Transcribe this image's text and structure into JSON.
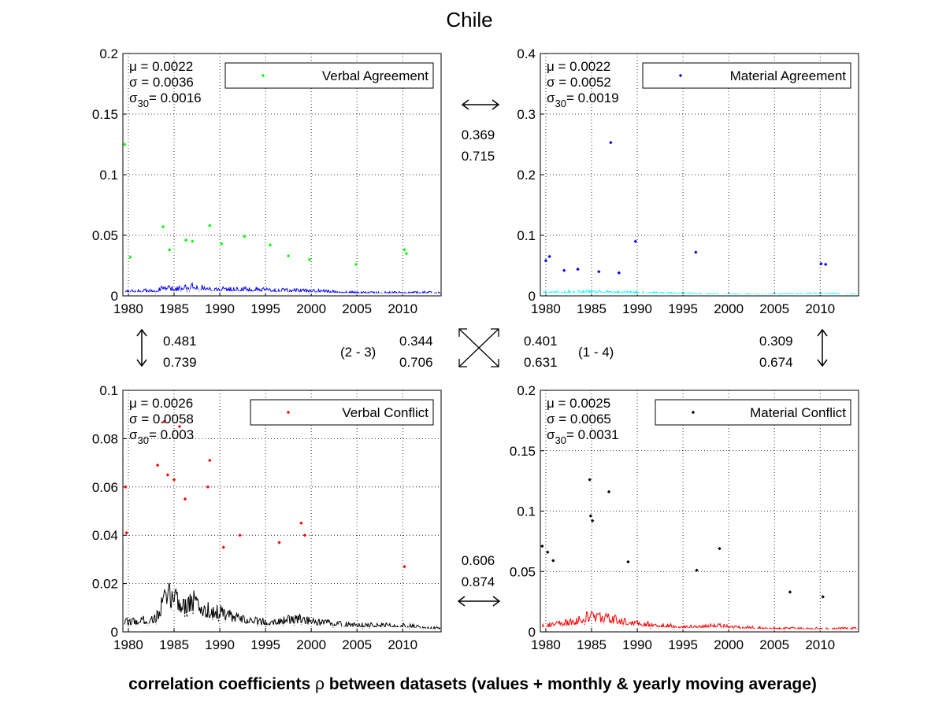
{
  "title": "Chile",
  "caption_pre": "correlation coefficients ",
  "caption_rho": "ρ",
  "caption_post": " between datasets (values + monthly & yearly moving average)",
  "chart_data": [
    {
      "id": "verbal-agreement",
      "type": "scatter",
      "legend": "Verbal Agreement",
      "color": "#00ff00",
      "mean_line_color": "#0000ff",
      "smooth_line_color": "#ffffff",
      "stats": {
        "mu": "0.0022",
        "sigma": "0.0036",
        "sigma30": "0.0016"
      },
      "ylim": [
        0,
        0.2
      ],
      "yticks": [
        "0",
        "0.05",
        "0.1",
        "0.15",
        "0.2"
      ],
      "yticks_values": [
        0,
        0.05,
        0.1,
        0.15,
        0.2
      ],
      "xlim": [
        1979.4,
        2014.2
      ],
      "xticks": [
        "1980",
        "1985",
        "1990",
        "1995",
        "2000",
        "2005",
        "2010"
      ],
      "base_level": 0.004,
      "noise_scale": 0.009,
      "outliers": [
        [
          1979.6,
          0.125
        ],
        [
          1983.8,
          0.057
        ],
        [
          1986.3,
          0.046
        ],
        [
          1987.0,
          0.045
        ],
        [
          1988.9,
          0.058
        ],
        [
          1990.2,
          0.043
        ],
        [
          1992.7,
          0.049
        ],
        [
          1995.5,
          0.042
        ],
        [
          1984.5,
          0.038
        ],
        [
          1980.2,
          0.032
        ],
        [
          2004.9,
          0.026
        ],
        [
          2010.2,
          0.038
        ],
        [
          2010.4,
          0.035
        ],
        [
          1997.5,
          0.033
        ],
        [
          1999.8,
          0.03
        ]
      ],
      "smooth": [
        [
          1980,
          0.003
        ],
        [
          1983,
          0.003
        ],
        [
          1984,
          0.005
        ],
        [
          1985,
          0.004
        ],
        [
          1987,
          0.006
        ],
        [
          1989,
          0.004
        ],
        [
          1992,
          0.004
        ],
        [
          1995,
          0.0035
        ],
        [
          2000,
          0.003
        ],
        [
          2005,
          0.002
        ],
        [
          2010,
          0.002
        ],
        [
          2014,
          0.002
        ]
      ]
    },
    {
      "id": "material-agreement",
      "type": "scatter",
      "legend": "Material Agreement",
      "color": "#0000ff",
      "mean_line_color": "#00ffff",
      "smooth_line_color": "#ffffff",
      "stats": {
        "mu": "0.0022",
        "sigma": "0.0052",
        "sigma30": "0.0019"
      },
      "ylim": [
        0,
        0.4
      ],
      "yticks": [
        "0",
        "0.1",
        "0.2",
        "0.3",
        "0.4"
      ],
      "yticks_values": [
        0,
        0.1,
        0.2,
        0.3,
        0.4
      ],
      "xlim": [
        1979.4,
        2014.2
      ],
      "xticks": [
        "1980",
        "1985",
        "1990",
        "1995",
        "2000",
        "2005",
        "2010"
      ],
      "base_level": 0.004,
      "noise_scale": 0.016,
      "outliers": [
        [
          1987.1,
          0.253
        ],
        [
          1989.8,
          0.09
        ],
        [
          1996.4,
          0.072
        ],
        [
          1980.4,
          0.065
        ],
        [
          1980.0,
          0.058
        ],
        [
          1983.5,
          0.044
        ],
        [
          1985.8,
          0.04
        ],
        [
          1988.0,
          0.038
        ],
        [
          2010.1,
          0.053
        ],
        [
          2010.6,
          0.052
        ],
        [
          1982.0,
          0.042
        ]
      ],
      "smooth": [
        [
          1980,
          0.004
        ],
        [
          1985,
          0.005
        ],
        [
          1990,
          0.004
        ],
        [
          1995,
          0.003
        ],
        [
          2000,
          0.002
        ],
        [
          2005,
          0.002
        ],
        [
          2010,
          0.003
        ],
        [
          2014,
          0.002
        ]
      ]
    },
    {
      "id": "verbal-conflict",
      "type": "scatter",
      "legend": "Verbal Conflict",
      "color": "#ff0000",
      "mean_line_color": "#000000",
      "smooth_line_color": "#ffffff",
      "stats": {
        "mu": "0.0026",
        "sigma": "0.0058",
        "sigma30": "0.003"
      },
      "ylim": [
        0,
        0.1
      ],
      "yticks": [
        "0",
        "0.02",
        "0.04",
        "0.06",
        "0.08",
        "0.1"
      ],
      "yticks_values": [
        0,
        0.02,
        0.04,
        0.06,
        0.08,
        0.1
      ],
      "xlim": [
        1979.4,
        2014.2
      ],
      "xticks": [
        "1980",
        "1985",
        "1990",
        "1995",
        "2000",
        "2005",
        "2010"
      ],
      "base_level": 0.005,
      "noise_scale": 0.012,
      "outliers": [
        [
          1979.7,
          0.06
        ],
        [
          1979.8,
          0.041
        ],
        [
          1983.9,
          0.087
        ],
        [
          1984.3,
          0.065
        ],
        [
          1985.0,
          0.063
        ],
        [
          1985.6,
          0.085
        ],
        [
          1983.2,
          0.069
        ],
        [
          1986.2,
          0.055
        ],
        [
          1988.9,
          0.071
        ],
        [
          1988.7,
          0.06
        ],
        [
          1992.2,
          0.04
        ],
        [
          1998.9,
          0.045
        ],
        [
          1999.3,
          0.04
        ],
        [
          2010.2,
          0.027
        ],
        [
          1990.4,
          0.035
        ],
        [
          1996.5,
          0.037
        ]
      ],
      "smooth": [
        [
          1980,
          0.003
        ],
        [
          1983,
          0.004
        ],
        [
          1984,
          0.01
        ],
        [
          1985,
          0.012
        ],
        [
          1986,
          0.008
        ],
        [
          1987,
          0.01
        ],
        [
          1988,
          0.007
        ],
        [
          1990,
          0.006
        ],
        [
          1992,
          0.004
        ],
        [
          1995,
          0.003
        ],
        [
          1999,
          0.004
        ],
        [
          2000,
          0.003
        ],
        [
          2005,
          0.002
        ],
        [
          2010,
          0.002
        ],
        [
          2014,
          0.001
        ]
      ]
    },
    {
      "id": "material-conflict",
      "type": "scatter",
      "legend": "Material Conflict",
      "color": "#000000",
      "mean_line_color": "#ff0000",
      "smooth_line_color": "#ffffff",
      "stats": {
        "mu": "0.0025",
        "sigma": "0.0065",
        "sigma30": "0.0031"
      },
      "ylim": [
        0,
        0.2
      ],
      "yticks": [
        "0",
        "0.05",
        "0.1",
        "0.15",
        "0.2"
      ],
      "yticks_values": [
        0,
        0.05,
        0.1,
        0.15,
        0.2
      ],
      "xlim": [
        1979.4,
        2014.2
      ],
      "xticks": [
        "1980",
        "1985",
        "1990",
        "1995",
        "2000",
        "2005",
        "2010"
      ],
      "base_level": 0.006,
      "noise_scale": 0.02,
      "outliers": [
        [
          1984.8,
          0.126
        ],
        [
          1986.9,
          0.116
        ],
        [
          1984.9,
          0.096
        ],
        [
          1985.1,
          0.092
        ],
        [
          1999.0,
          0.069
        ],
        [
          1979.6,
          0.071
        ],
        [
          1980.2,
          0.066
        ],
        [
          1980.8,
          0.059
        ],
        [
          1996.5,
          0.051
        ],
        [
          1989.0,
          0.058
        ],
        [
          2006.7,
          0.033
        ],
        [
          2010.3,
          0.029
        ]
      ],
      "smooth": [
        [
          1980,
          0.004
        ],
        [
          1983,
          0.006
        ],
        [
          1985,
          0.01
        ],
        [
          1987,
          0.008
        ],
        [
          1990,
          0.005
        ],
        [
          1995,
          0.003
        ],
        [
          1999,
          0.004
        ],
        [
          2000,
          0.003
        ],
        [
          2005,
          0.002
        ],
        [
          2010,
          0.002
        ],
        [
          2014,
          0.002
        ]
      ]
    }
  ],
  "correlations": {
    "top": {
      "a": "0.369",
      "b": "0.715"
    },
    "left": {
      "a": "0.481",
      "b": "0.739"
    },
    "center_left": {
      "label": "(2 - 3)",
      "a": "0.344",
      "b": "0.706"
    },
    "center_right": {
      "label": "(1 - 4)",
      "a": "0.401",
      "b": "0.631"
    },
    "right": {
      "a": "0.309",
      "b": "0.674"
    },
    "bottom": {
      "a": "0.606",
      "b": "0.874"
    }
  }
}
